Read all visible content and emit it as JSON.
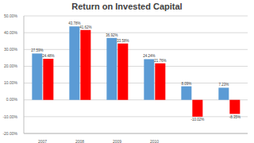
{
  "chart_data": {
    "type": "bar",
    "title": "Return on Invested Capital",
    "categories": [
      "2007",
      "2008",
      "2009",
      "2010",
      null,
      null
    ],
    "series": [
      {
        "color": "#5b9bd5",
        "values": [
          27.59,
          43.78,
          36.92,
          24.24,
          8.09,
          7.23
        ],
        "value_labels": [
          "27.59%",
          "43.78%",
          "36.92%",
          "24.24%",
          "8.09%",
          "7.23%"
        ]
      },
      {
        "color": "#ff0000",
        "values": [
          24.48,
          41.62,
          33.58,
          21.76,
          -10.02,
          -8.35
        ],
        "value_labels": [
          "24.48%",
          "41.62%",
          "33.58%",
          "21.76%",
          "-10.02%",
          "-8.35%"
        ]
      }
    ],
    "ylim": [
      -20,
      50
    ],
    "yticks": [
      {
        "value": -20,
        "label": "-20.00%"
      },
      {
        "value": -10,
        "label": "-10.00%"
      },
      {
        "value": 0,
        "label": "0.00%"
      },
      {
        "value": 10,
        "label": "10.00%"
      },
      {
        "value": 20,
        "label": "20.00%"
      },
      {
        "value": 30,
        "label": "30.00%"
      },
      {
        "value": 40,
        "label": "40.00%"
      },
      {
        "value": 50,
        "label": "50.00%"
      }
    ],
    "grid": true,
    "data_labels": true
  }
}
